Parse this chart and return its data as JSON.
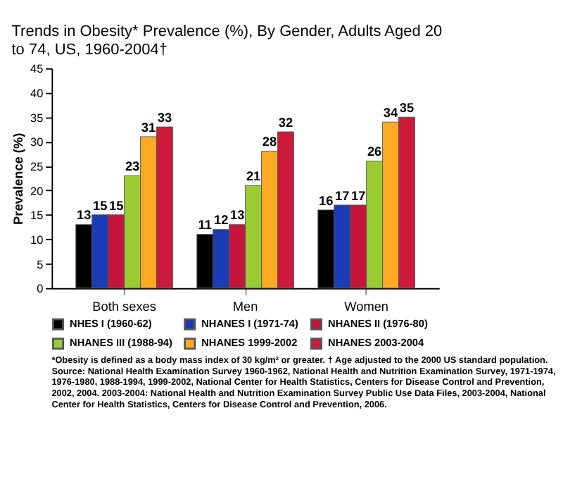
{
  "chart_data": {
    "type": "bar",
    "title": "Trends in Obesity* Prevalence (%), By Gender, Adults Aged 20 to 74, US, 1960-2004†",
    "ylabel": "Prevalence (%)",
    "categories": [
      "Both sexes",
      "Men",
      "Women"
    ],
    "series": [
      {
        "name": "NHES I (1960-62)",
        "color": "#000000",
        "values": [
          13,
          11,
          16
        ]
      },
      {
        "name": "NHANES I (1971-74)",
        "color": "#1a3cb4",
        "values": [
          15,
          12,
          17
        ]
      },
      {
        "name": "NHANES II (1976-80)",
        "color": "#c4163c",
        "values": [
          15,
          13,
          17
        ]
      },
      {
        "name": "NHANES III (1988-94)",
        "color": "#99cc33",
        "values": [
          23,
          21,
          26
        ]
      },
      {
        "name": "NHANES 1999-2002",
        "color": "#ffaa22",
        "values": [
          31,
          28,
          34
        ]
      },
      {
        "name": "NHANES 2003-2004",
        "color": "#cc1a3a",
        "values": [
          33,
          32,
          35
        ]
      }
    ],
    "ylim": [
      0,
      45
    ],
    "yticks": [
      0,
      5,
      10,
      15,
      20,
      25,
      30,
      35,
      40,
      45
    ],
    "data_labels": true,
    "legend": "bottom",
    "grid": false,
    "annotations": [
      "*Obesity is defined as a body mass index of 30 kg/m² or greater. † Age adjusted to the 2000 US standard population. Source: National Health Examination Survey 1960-1962, National Health and Nutrition Examination Survey, 1971-1974, 1976-1980, 1988-1994, 1999-2002, National Center for Health Statistics, Centers for Disease Control and Prevention, 2002, 2004. 2003-2004: National Health and Nutrition Examination Survey Public Use Data Files, 2003-2004, National Center for Health Statistics, Centers for Disease Control and Prevention, 2006."
    ]
  }
}
